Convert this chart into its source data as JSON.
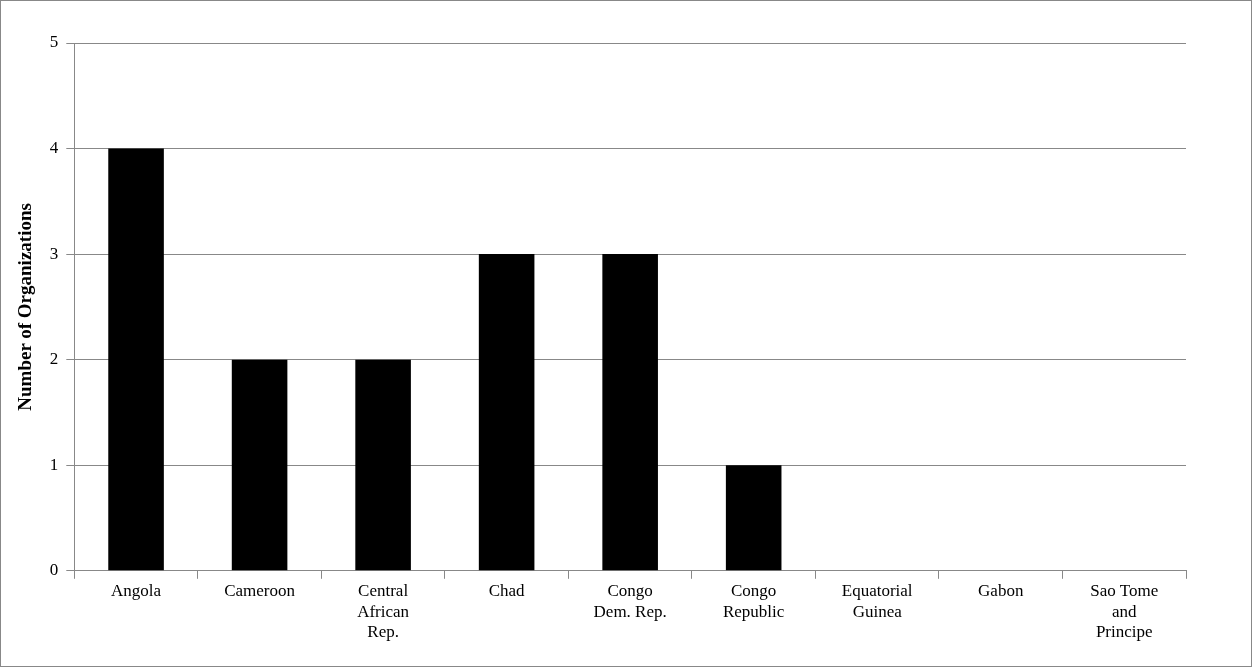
{
  "chart_data": {
    "type": "bar",
    "ylabel": "Number of Organizations",
    "categories": [
      "Angola",
      "Cameroon",
      "Central African Rep.",
      "Chad",
      "Congo Dem. Rep.",
      "Congo Republic",
      "Equatorial Guinea",
      "Gabon",
      "Sao Tome and Principe"
    ],
    "values": [
      4,
      2,
      2,
      3,
      3,
      1,
      0,
      0,
      0
    ],
    "color": "#000000",
    "ylim": [
      0,
      5
    ],
    "yticks": [
      0,
      1,
      2,
      3,
      4,
      5
    ],
    "grid": "y",
    "legend": false
  }
}
